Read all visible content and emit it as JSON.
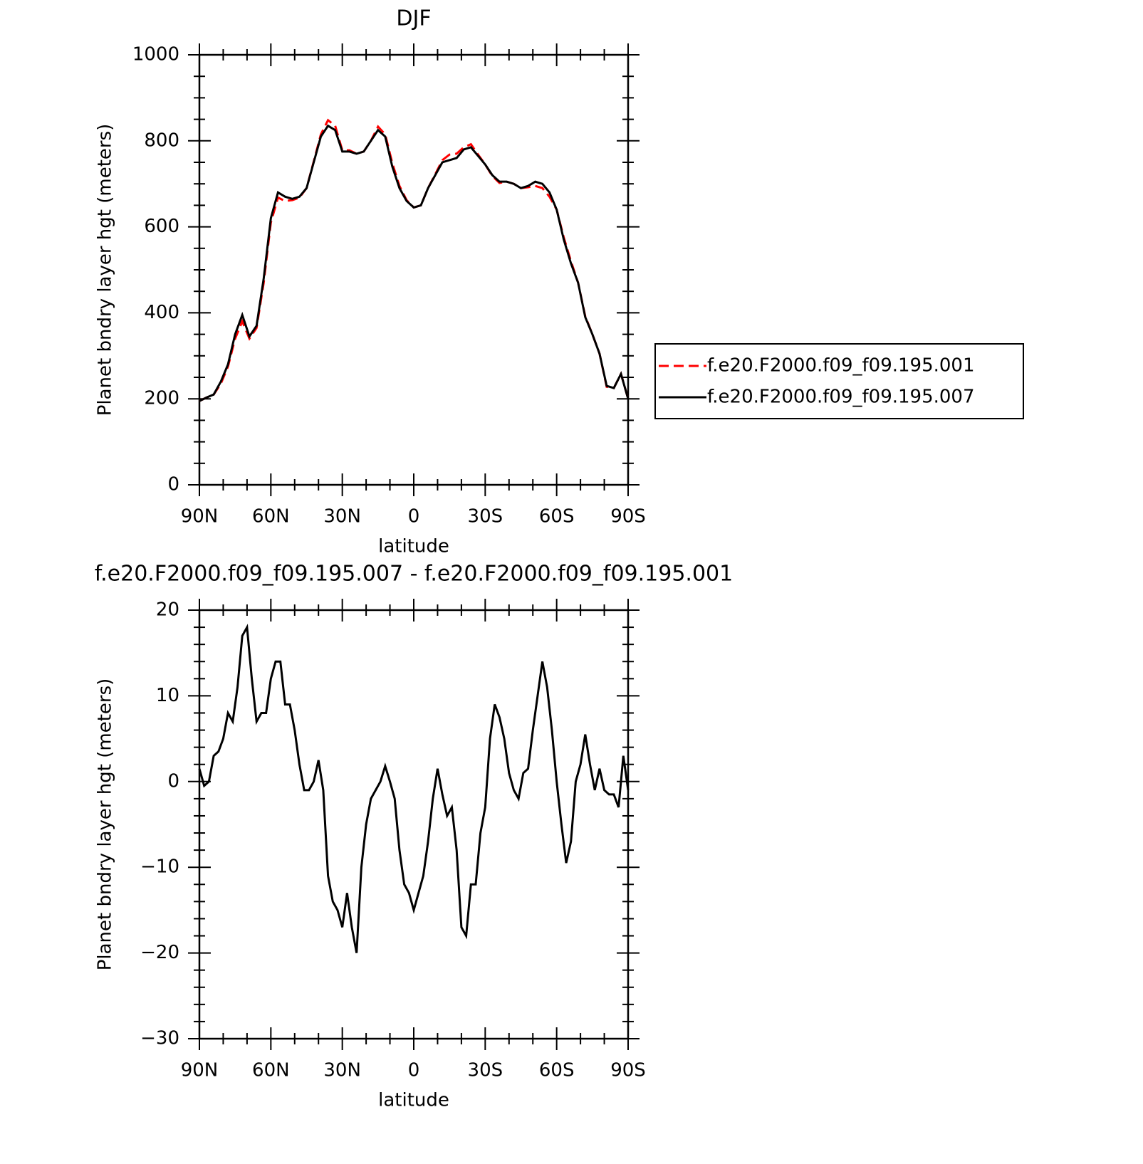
{
  "chart_data": [
    {
      "type": "line",
      "title": "DJF",
      "xlabel": "latitude",
      "ylabel": "Planet bndry layer hgt (meters)",
      "x": [
        90,
        87,
        84,
        81,
        78,
        75,
        72,
        69,
        66,
        63,
        60,
        57,
        54,
        51,
        48,
        45,
        42,
        39,
        36,
        33,
        30,
        27,
        24,
        21,
        18,
        15,
        12,
        9,
        6,
        3,
        0,
        -3,
        -6,
        -9,
        -12,
        -15,
        -18,
        -21,
        -24,
        -27,
        -30,
        -33,
        -36,
        -39,
        -42,
        -45,
        -48,
        -51,
        -54,
        -57,
        -60,
        -63,
        -66,
        -69,
        -72,
        -75,
        -78,
        -81,
        -84,
        -87,
        -90
      ],
      "xlim": [
        90,
        -90
      ],
      "xticks": [
        {
          "value": 90,
          "label": "90N"
        },
        {
          "value": 60,
          "label": "60N"
        },
        {
          "value": 30,
          "label": "30N"
        },
        0,
        {
          "value": -30,
          "label": "30S"
        },
        {
          "value": -60,
          "label": "60S"
        },
        {
          "value": -90,
          "label": "90S"
        }
      ],
      "ylim": [
        0,
        1000
      ],
      "yticks": [
        0,
        200,
        400,
        600,
        800,
        1000
      ],
      "legend": "right",
      "series": [
        {
          "name": "f.e20.F2000.f09_f09.195.001",
          "color": "#ff0000",
          "line_style": "dashed",
          "values": [
            195,
            203,
            210,
            235,
            275,
            340,
            380,
            340,
            365,
            470,
            610,
            668,
            660,
            662,
            668,
            690,
            752,
            815,
            848,
            835,
            778,
            778,
            770,
            775,
            800,
            833,
            815,
            748,
            695,
            662,
            645,
            650,
            690,
            722,
            755,
            768,
            770,
            785,
            792,
            768,
            745,
            718,
            702,
            705,
            700,
            690,
            692,
            695,
            690,
            670,
            640,
            575,
            520,
            470,
            392,
            350,
            305,
            228,
            225,
            258,
            200
          ]
        },
        {
          "name": "f.e20.F2000.f09_f09.195.007",
          "color": "#000000",
          "line_style": "solid",
          "values": [
            195,
            203,
            210,
            240,
            280,
            350,
            395,
            345,
            370,
            480,
            620,
            680,
            670,
            665,
            670,
            690,
            750,
            810,
            835,
            825,
            775,
            775,
            770,
            775,
            800,
            825,
            810,
            740,
            690,
            660,
            645,
            650,
            690,
            720,
            750,
            755,
            760,
            780,
            785,
            765,
            745,
            720,
            705,
            705,
            700,
            690,
            695,
            705,
            700,
            680,
            640,
            570,
            515,
            470,
            390,
            350,
            305,
            230,
            225,
            258,
            200
          ]
        }
      ]
    },
    {
      "type": "line",
      "title": "f.e20.F2000.f09_f09.195.007 - f.e20.F2000.f09_f09.195.001",
      "xlabel": "latitude",
      "ylabel": "Planet bndry layer hgt (meters)",
      "x": [
        90,
        88,
        86,
        84,
        82,
        80,
        78,
        76,
        74,
        72,
        70,
        68,
        66,
        64,
        62,
        60,
        58,
        56,
        54,
        52,
        50,
        48,
        46,
        44,
        42,
        40,
        38,
        36,
        34,
        32,
        30,
        28,
        26,
        24,
        22,
        20,
        18,
        16,
        14,
        12,
        10,
        8,
        6,
        4,
        2,
        0,
        -2,
        -4,
        -6,
        -8,
        -10,
        -12,
        -14,
        -16,
        -18,
        -20,
        -22,
        -24,
        -26,
        -28,
        -30,
        -32,
        -34,
        -36,
        -38,
        -40,
        -42,
        -44,
        -46,
        -48,
        -50,
        -52,
        -54,
        -56,
        -58,
        -60,
        -62,
        -64,
        -66,
        -68,
        -70,
        -72,
        -74,
        -76,
        -78,
        -80,
        -82,
        -84,
        -86,
        -88,
        -90
      ],
      "xlim": [
        90,
        -90
      ],
      "xticks": [
        {
          "value": 90,
          "label": "90N"
        },
        {
          "value": 60,
          "label": "60N"
        },
        {
          "value": 30,
          "label": "30N"
        },
        0,
        {
          "value": -30,
          "label": "30S"
        },
        {
          "value": -60,
          "label": "60S"
        },
        {
          "value": -90,
          "label": "90S"
        }
      ],
      "ylim": [
        -30,
        20
      ],
      "yticks": [
        {
          "value": -30,
          "label": "−30"
        },
        {
          "value": -20,
          "label": "−20"
        },
        {
          "value": -10,
          "label": "−10"
        },
        0,
        10,
        20
      ],
      "series": [
        {
          "color": "#000000",
          "line_style": "solid",
          "values": [
            1.5,
            -0.5,
            0,
            3,
            3.5,
            5,
            8,
            7,
            11,
            17,
            18,
            12,
            7,
            8,
            8,
            12,
            14,
            14,
            9,
            9,
            6,
            2,
            -1,
            -1,
            0,
            2.5,
            -1,
            -11,
            -14,
            -15,
            -17,
            -13,
            -17,
            -20,
            -10,
            -5,
            -2,
            -1,
            0,
            1.8,
            0,
            -2,
            -8,
            -12,
            -13,
            -15,
            -13,
            -11,
            -7,
            -2,
            1.5,
            -1.5,
            -4,
            -3,
            -8,
            -17,
            -18,
            -12,
            -12,
            -6,
            -3,
            5,
            9,
            7.5,
            5,
            1,
            -1,
            -2,
            1,
            1.5,
            6,
            10,
            14,
            11,
            6,
            0,
            -5,
            -9.5,
            -7,
            0,
            2,
            5.5,
            2,
            -1,
            1.5,
            -1,
            -1.5,
            -1.5,
            -3,
            3,
            -1
          ]
        }
      ]
    }
  ]
}
